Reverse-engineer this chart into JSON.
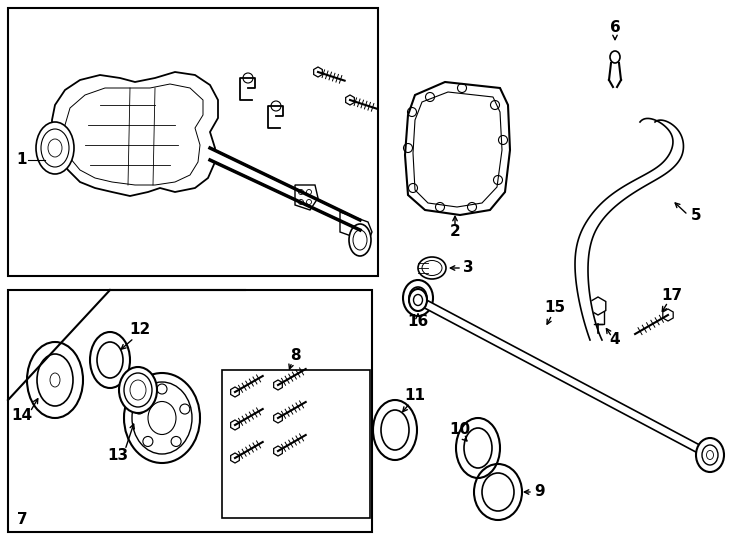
{
  "bg_color": "#ffffff",
  "line_color": "#000000",
  "figsize": [
    7.34,
    5.4
  ],
  "dpi": 100,
  "lw": 1.0
}
